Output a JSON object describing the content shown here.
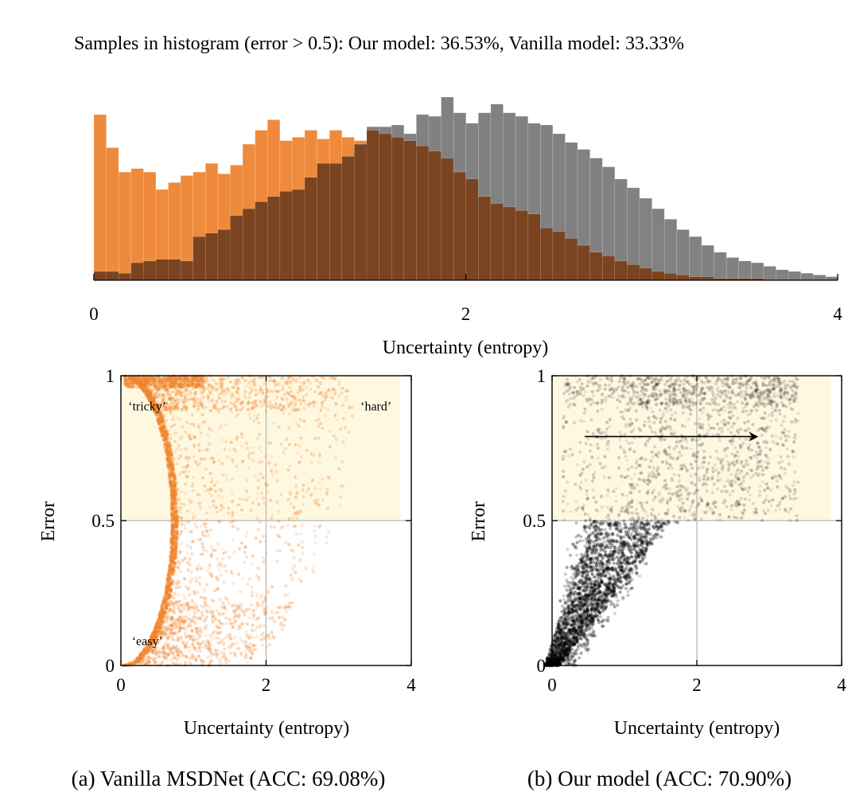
{
  "header": {
    "title": "Samples in histogram (error > 0.5): Our model: 36.53%, Vanilla model: 33.33%"
  },
  "colors": {
    "orange": "#f0852d",
    "orange_bar": "#ef8a3c",
    "gray_bar": "#818181",
    "overlap_bar": "#7a4420",
    "hard_region": "#fff8e1",
    "grid": "#b3b3b3",
    "black_points": "#000000"
  },
  "chart_data": [
    {
      "type": "bar",
      "subtype": "overlapping-histogram",
      "title": "Samples in histogram (error > 0.5): Our model: 36.53%, Vanilla model: 33.33%",
      "xlabel": "Uncertainty (entropy)",
      "ylabel": "",
      "xlim": [
        0,
        4
      ],
      "xticks": [
        "0",
        "2",
        "4"
      ],
      "bin_width": 0.0667,
      "bin_start": 0,
      "series": [
        {
          "name": "Vanilla model",
          "color": "#ef8a3c",
          "values": [
            95,
            76,
            62,
            64,
            62,
            52,
            56,
            60,
            62,
            67,
            61,
            66,
            78,
            86,
            92,
            80,
            82,
            86,
            81,
            86,
            82,
            80,
            86,
            84,
            82,
            80,
            77,
            74,
            70,
            62,
            58,
            48,
            44,
            42,
            40,
            38,
            30,
            28,
            24,
            20,
            16,
            14,
            11,
            9,
            7,
            5,
            4,
            3,
            2,
            2,
            1,
            1,
            1,
            1,
            0,
            0,
            0,
            0,
            0,
            0
          ]
        },
        {
          "name": "Our model",
          "color": "#818181",
          "values": [
            5,
            5,
            4,
            10,
            11,
            12,
            12,
            11,
            25,
            27,
            29,
            37,
            41,
            45,
            48,
            51,
            52,
            59,
            67,
            67,
            71,
            78,
            88,
            88,
            89,
            84,
            95,
            94,
            105,
            96,
            90,
            96,
            101,
            96,
            94,
            90,
            89,
            84,
            79,
            75,
            70,
            65,
            58,
            53,
            47,
            41,
            35,
            29,
            25,
            20,
            16,
            13,
            11,
            10,
            8,
            6,
            5,
            4,
            3,
            2
          ]
        }
      ]
    },
    {
      "type": "scatter",
      "name": "Vanilla MSDNet",
      "caption": "(a) Vanilla MSDNet (ACC: 69.08%)",
      "xlabel": "Uncertainty (entropy)",
      "ylabel": "Error",
      "xlim": [
        0,
        4
      ],
      "ylim": [
        0,
        1
      ],
      "xticks": [
        "0",
        "2",
        "4"
      ],
      "yticks": [
        "0",
        "0.5",
        "1"
      ],
      "grid": true,
      "point_color": "#f0852d",
      "highlight_region": {
        "x": [
          0,
          3.85
        ],
        "y": [
          0.5,
          1
        ]
      },
      "annotations": [
        {
          "text": "‘tricky’",
          "x": 0.1,
          "y": 0.88
        },
        {
          "text": "‘hard’",
          "x": 3.3,
          "y": 0.88
        },
        {
          "text": "‘easy’",
          "x": 0.15,
          "y": 0.07
        }
      ],
      "point_model": {
        "count": 2600,
        "envelope_min_x": [
          0.62,
          0.7
        ],
        "envelope_max_x": 3.2,
        "seed": 11
      }
    },
    {
      "type": "scatter",
      "name": "Our model",
      "caption": "(b) Our model (ACC: 70.90%)",
      "xlabel": "Uncertainty (entropy)",
      "ylabel": "Error",
      "xlim": [
        0,
        4
      ],
      "ylim": [
        0,
        1
      ],
      "xticks": [
        "0",
        "2",
        "4"
      ],
      "yticks": [
        "0",
        "0.5",
        "1"
      ],
      "grid": true,
      "point_color": "#000000",
      "highlight_region": {
        "x": [
          0,
          3.85
        ],
        "y": [
          0.5,
          1
        ]
      },
      "arrow": {
        "from": [
          0.45,
          0.79
        ],
        "to": [
          2.85,
          0.79
        ]
      },
      "point_model": {
        "count": 2600,
        "seed": 29
      }
    }
  ]
}
